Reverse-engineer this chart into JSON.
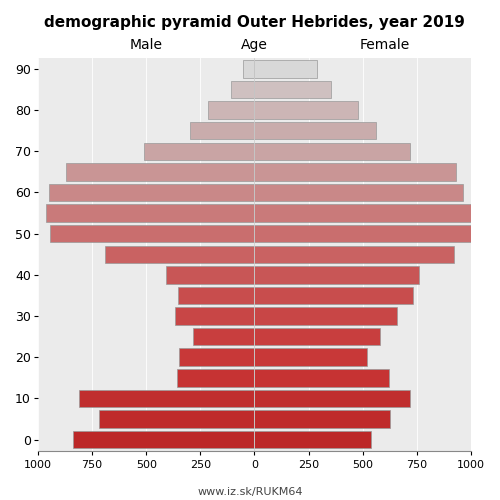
{
  "title": "demographic pyramid Outer Hebrides, year 2019",
  "age_groups": [
    90,
    85,
    80,
    75,
    70,
    65,
    60,
    55,
    50,
    45,
    40,
    35,
    30,
    25,
    20,
    15,
    10,
    5,
    0
  ],
  "age_tick_labels": [
    "90",
    "80",
    "70",
    "60",
    "50",
    "40",
    "30",
    "20",
    "10",
    "0"
  ],
  "male_values": [
    55,
    110,
    215,
    300,
    510,
    870,
    950,
    965,
    945,
    690,
    410,
    355,
    365,
    285,
    350,
    360,
    810,
    720,
    840
  ],
  "female_values": [
    290,
    355,
    480,
    560,
    720,
    930,
    965,
    1000,
    1000,
    920,
    760,
    730,
    660,
    580,
    520,
    620,
    720,
    625,
    540
  ],
  "age_colors": [
    "#d8d8d8",
    "#cfc0c0",
    "#ccb5b5",
    "#c9acac",
    "#c9a4a4",
    "#c99595",
    "#c98888",
    "#c97a7a",
    "#c96e6e",
    "#c96262",
    "#c85656",
    "#c84d4d",
    "#c84646",
    "#c83e3e",
    "#c83838",
    "#c63333",
    "#c02e2e",
    "#bf2b2b",
    "#bc2828"
  ],
  "edge_color": "#999999",
  "xlim": 1000,
  "bar_height": 0.85,
  "label_left": "Male",
  "label_center": "Age",
  "label_right": "Female",
  "title_fontsize": 11,
  "footer": "www.iz.sk/RUKM64",
  "bg_color": "#ffffff",
  "plot_bg": "#ebebeb"
}
